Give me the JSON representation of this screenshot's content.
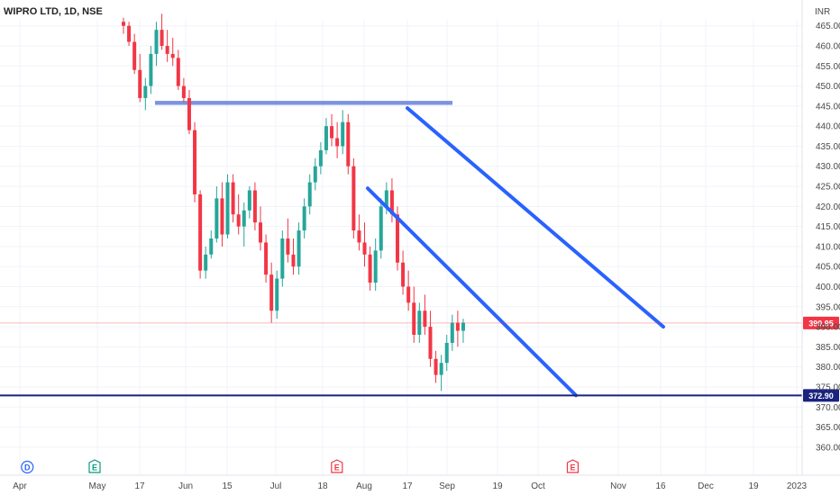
{
  "header": {
    "title": "WIPRO LTD, 1D, NSE",
    "currency": "INR"
  },
  "chart_data": {
    "type": "candlestick",
    "ylim": [
      357.5,
      466.5
    ],
    "y_ticks": [
      465,
      460,
      455,
      450,
      445,
      440,
      435,
      430,
      425,
      420,
      415,
      410,
      405,
      400,
      395,
      390,
      385,
      380,
      375,
      370,
      365,
      360
    ],
    "x_ticks": [
      "Apr",
      "May",
      "17",
      "Jun",
      "15",
      "Jul",
      "18",
      "Aug",
      "17",
      "Sep",
      "19",
      "Oct",
      "Nov",
      "16",
      "Dec",
      "19",
      "2023"
    ],
    "last_price": "390.95",
    "support_level": "372.90",
    "resistance_zone": [
      445.3,
      446.3
    ],
    "colors": {
      "up": "#26a69a",
      "down": "#f23645",
      "channel": "#2962ff",
      "zone": "#4f6fd8",
      "support": "#1a237e"
    },
    "candles": [
      [
        466,
        467,
        463,
        465
      ],
      [
        465,
        466,
        460,
        461
      ],
      [
        461,
        463,
        453,
        454
      ],
      [
        454,
        458,
        446,
        447
      ],
      [
        447,
        452,
        444,
        450
      ],
      [
        450,
        460,
        448,
        458
      ],
      [
        458,
        466,
        455,
        464
      ],
      [
        464,
        468,
        459,
        460
      ],
      [
        460,
        464,
        456,
        458
      ],
      [
        458,
        462,
        455,
        457
      ],
      [
        457,
        459,
        449,
        450
      ],
      [
        450,
        452,
        446,
        447
      ],
      [
        447,
        449,
        438,
        439
      ],
      [
        439,
        441,
        421,
        423
      ],
      [
        423,
        424,
        402,
        404
      ],
      [
        404,
        410,
        402,
        408
      ],
      [
        408,
        414,
        407,
        412
      ],
      [
        412,
        425,
        411,
        422
      ],
      [
        422,
        426,
        410,
        413
      ],
      [
        413,
        428,
        412,
        426
      ],
      [
        426,
        428,
        416,
        418
      ],
      [
        418,
        423,
        413,
        415
      ],
      [
        415,
        421,
        410,
        419
      ],
      [
        419,
        425,
        417,
        424
      ],
      [
        424,
        426,
        414,
        416
      ],
      [
        416,
        420,
        409,
        411
      ],
      [
        411,
        413,
        401,
        403
      ],
      [
        403,
        406,
        391,
        394
      ],
      [
        394,
        404,
        392,
        402
      ],
      [
        402,
        414,
        400,
        412
      ],
      [
        412,
        417,
        406,
        408
      ],
      [
        408,
        412,
        403,
        405
      ],
      [
        405,
        416,
        403,
        414
      ],
      [
        414,
        422,
        412,
        420
      ],
      [
        420,
        428,
        418,
        426
      ],
      [
        426,
        432,
        424,
        430
      ],
      [
        430,
        436,
        428,
        434
      ],
      [
        434,
        442,
        433,
        440
      ],
      [
        440,
        443,
        435,
        437
      ],
      [
        437,
        441,
        432,
        435
      ],
      [
        435,
        444,
        433,
        441
      ],
      [
        441,
        443,
        428,
        430
      ],
      [
        430,
        432,
        412,
        414
      ],
      [
        414,
        418,
        409,
        411
      ],
      [
        411,
        416,
        405,
        408
      ],
      [
        408,
        410,
        399,
        401
      ],
      [
        401,
        412,
        399,
        409
      ],
      [
        409,
        422,
        407,
        420
      ],
      [
        420,
        426,
        418,
        424
      ],
      [
        424,
        427,
        416,
        418
      ],
      [
        418,
        420,
        404,
        406
      ],
      [
        406,
        409,
        398,
        400
      ],
      [
        400,
        404,
        394,
        396
      ],
      [
        396,
        400,
        386,
        388
      ],
      [
        388,
        396,
        386,
        394
      ],
      [
        394,
        398,
        388,
        390
      ],
      [
        390,
        394,
        380,
        382
      ],
      [
        382,
        384,
        376,
        378
      ],
      [
        378,
        383,
        374,
        381
      ],
      [
        381,
        388,
        379,
        386
      ],
      [
        386,
        393,
        384,
        391
      ],
      [
        391,
        394,
        385,
        389
      ],
      [
        389,
        392,
        386,
        391
      ]
    ],
    "event_markers": [
      {
        "x_frac": 0.034,
        "label": "D",
        "color": "#2962ff"
      },
      {
        "x_frac": 0.118,
        "label": "E",
        "color": "#089981"
      },
      {
        "x_frac": 0.42,
        "label": "E",
        "color": "#f23645"
      },
      {
        "x_frac": 0.714,
        "label": "E",
        "color": "#f23645"
      }
    ]
  }
}
